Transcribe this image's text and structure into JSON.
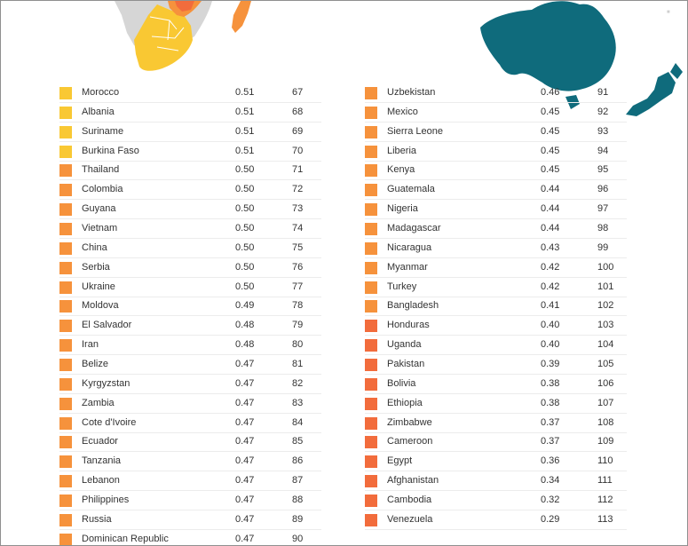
{
  "chart_data": {
    "type": "table",
    "columns": [
      "swatch",
      "country",
      "score",
      "rank"
    ],
    "colors": {
      "yellow": "#f9c833",
      "orange": "#f6923c",
      "red_orange": "#f26c3c",
      "map_teal": "#0f6b7c",
      "map_gray": "#d6d6d6"
    },
    "rows": [
      {
        "country": "Morocco",
        "score": "0.51",
        "rank": "67",
        "color": "yellow"
      },
      {
        "country": "Albania",
        "score": "0.51",
        "rank": "68",
        "color": "yellow"
      },
      {
        "country": "Suriname",
        "score": "0.51",
        "rank": "69",
        "color": "yellow"
      },
      {
        "country": "Burkina Faso",
        "score": "0.51",
        "rank": "70",
        "color": "yellow"
      },
      {
        "country": "Thailand",
        "score": "0.50",
        "rank": "71",
        "color": "orange"
      },
      {
        "country": "Colombia",
        "score": "0.50",
        "rank": "72",
        "color": "orange"
      },
      {
        "country": "Guyana",
        "score": "0.50",
        "rank": "73",
        "color": "orange"
      },
      {
        "country": "Vietnam",
        "score": "0.50",
        "rank": "74",
        "color": "orange"
      },
      {
        "country": "China",
        "score": "0.50",
        "rank": "75",
        "color": "orange"
      },
      {
        "country": "Serbia",
        "score": "0.50",
        "rank": "76",
        "color": "orange"
      },
      {
        "country": "Ukraine",
        "score": "0.50",
        "rank": "77",
        "color": "orange"
      },
      {
        "country": "Moldova",
        "score": "0.49",
        "rank": "78",
        "color": "orange"
      },
      {
        "country": "El Salvador",
        "score": "0.48",
        "rank": "79",
        "color": "orange"
      },
      {
        "country": "Iran",
        "score": "0.48",
        "rank": "80",
        "color": "orange"
      },
      {
        "country": "Belize",
        "score": "0.47",
        "rank": "81",
        "color": "orange"
      },
      {
        "country": "Kyrgyzstan",
        "score": "0.47",
        "rank": "82",
        "color": "orange"
      },
      {
        "country": "Zambia",
        "score": "0.47",
        "rank": "83",
        "color": "orange"
      },
      {
        "country": "Cote d'Ivoire",
        "score": "0.47",
        "rank": "84",
        "color": "orange"
      },
      {
        "country": "Ecuador",
        "score": "0.47",
        "rank": "85",
        "color": "orange"
      },
      {
        "country": "Tanzania",
        "score": "0.47",
        "rank": "86",
        "color": "orange"
      },
      {
        "country": "Lebanon",
        "score": "0.47",
        "rank": "87",
        "color": "orange"
      },
      {
        "country": "Philippines",
        "score": "0.47",
        "rank": "88",
        "color": "orange"
      },
      {
        "country": "Russia",
        "score": "0.47",
        "rank": "89",
        "color": "orange"
      },
      {
        "country": "Dominican Republic",
        "score": "0.47",
        "rank": "90",
        "color": "orange"
      },
      {
        "country": "Uzbekistan",
        "score": "0.46",
        "rank": "91",
        "color": "orange"
      },
      {
        "country": "Mexico",
        "score": "0.45",
        "rank": "92",
        "color": "orange"
      },
      {
        "country": "Sierra Leone",
        "score": "0.45",
        "rank": "93",
        "color": "orange"
      },
      {
        "country": "Liberia",
        "score": "0.45",
        "rank": "94",
        "color": "orange"
      },
      {
        "country": "Kenya",
        "score": "0.45",
        "rank": "95",
        "color": "orange"
      },
      {
        "country": "Guatemala",
        "score": "0.44",
        "rank": "96",
        "color": "orange"
      },
      {
        "country": "Nigeria",
        "score": "0.44",
        "rank": "97",
        "color": "orange"
      },
      {
        "country": "Madagascar",
        "score": "0.44",
        "rank": "98",
        "color": "orange"
      },
      {
        "country": "Nicaragua",
        "score": "0.43",
        "rank": "99",
        "color": "orange"
      },
      {
        "country": "Myanmar",
        "score": "0.42",
        "rank": "100",
        "color": "orange"
      },
      {
        "country": "Turkey",
        "score": "0.42",
        "rank": "101",
        "color": "orange"
      },
      {
        "country": "Bangladesh",
        "score": "0.41",
        "rank": "102",
        "color": "orange"
      },
      {
        "country": "Honduras",
        "score": "0.40",
        "rank": "103",
        "color": "red_orange"
      },
      {
        "country": "Uganda",
        "score": "0.40",
        "rank": "104",
        "color": "red_orange"
      },
      {
        "country": "Pakistan",
        "score": "0.39",
        "rank": "105",
        "color": "red_orange"
      },
      {
        "country": "Bolivia",
        "score": "0.38",
        "rank": "106",
        "color": "red_orange"
      },
      {
        "country": "Ethiopia",
        "score": "0.38",
        "rank": "107",
        "color": "red_orange"
      },
      {
        "country": "Zimbabwe",
        "score": "0.37",
        "rank": "108",
        "color": "red_orange"
      },
      {
        "country": "Cameroon",
        "score": "0.37",
        "rank": "109",
        "color": "red_orange"
      },
      {
        "country": "Egypt",
        "score": "0.36",
        "rank": "110",
        "color": "red_orange"
      },
      {
        "country": "Afghanistan",
        "score": "0.34",
        "rank": "111",
        "color": "red_orange"
      },
      {
        "country": "Cambodia",
        "score": "0.32",
        "rank": "112",
        "color": "red_orange"
      },
      {
        "country": "Venezuela",
        "score": "0.29",
        "rank": "113",
        "color": "red_orange"
      }
    ]
  }
}
